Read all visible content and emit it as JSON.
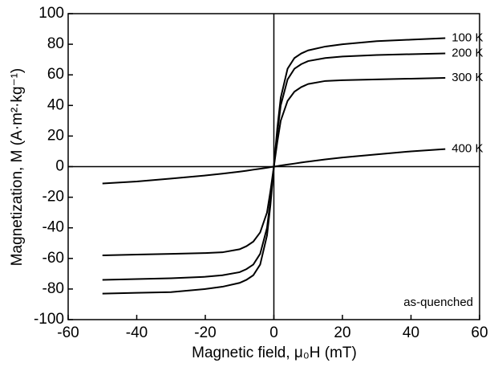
{
  "chart_data": {
    "type": "line",
    "x_label": "Magnetic field, μ₀H (mT)",
    "y_label": "Magnetization, M (A·m²·kg⁻¹)",
    "annotation": "as-quenched",
    "x": [
      -50,
      -40,
      -30,
      -20,
      -15,
      -10,
      -8,
      -6,
      -4,
      -2,
      -1,
      0,
      1,
      2,
      4,
      6,
      8,
      10,
      15,
      20,
      30,
      40,
      50
    ],
    "series": [
      {
        "name": "100 K",
        "color": "#000000",
        "values": [
          -83,
          -82.5,
          -82,
          -80,
          -78.5,
          -76,
          -74,
          -71,
          -64,
          -45,
          -25,
          0,
          25,
          45,
          64,
          71,
          74,
          76,
          78.5,
          80,
          82,
          83,
          84
        ]
      },
      {
        "name": "200 K",
        "color": "#000000",
        "values": [
          -74,
          -73.5,
          -73,
          -72,
          -71,
          -69,
          -67,
          -64,
          -57,
          -40,
          -22,
          0,
          22,
          40,
          57,
          64,
          67,
          69,
          71,
          72,
          73,
          73.5,
          74
        ]
      },
      {
        "name": "300 K",
        "color": "#000000",
        "values": [
          -58,
          -57.5,
          -57,
          -56.5,
          -56,
          -54,
          -52,
          -49,
          -43,
          -30,
          -16,
          0,
          16,
          30,
          43,
          49,
          52,
          54,
          56,
          56.5,
          57,
          57.5,
          58
        ]
      },
      {
        "name": "400 K",
        "color": "#000000",
        "values": [
          -11,
          -9.7,
          -7.8,
          -5.8,
          -4.6,
          -3.3,
          -2.7,
          -2,
          -1.4,
          -0.7,
          -0.35,
          0,
          0.35,
          0.7,
          1.4,
          2,
          2.7,
          3.3,
          4.7,
          6,
          8,
          10,
          11.5
        ]
      }
    ],
    "xlim": [
      -60,
      60
    ],
    "xticks": [
      -60,
      -40,
      -20,
      0,
      20,
      40,
      60
    ],
    "ylim": [
      -100,
      100
    ],
    "yticks": [
      -100,
      -80,
      -60,
      -40,
      -20,
      0,
      20,
      40,
      60,
      80,
      100
    ],
    "grid": false
  }
}
